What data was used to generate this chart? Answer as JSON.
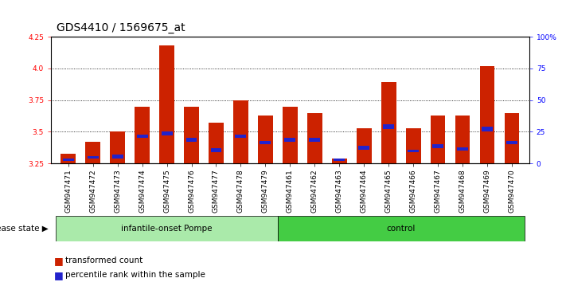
{
  "title": "GDS4410 / 1569675_at",
  "samples": [
    "GSM947471",
    "GSM947472",
    "GSM947473",
    "GSM947474",
    "GSM947475",
    "GSM947476",
    "GSM947477",
    "GSM947478",
    "GSM947479",
    "GSM947461",
    "GSM947462",
    "GSM947463",
    "GSM947464",
    "GSM947465",
    "GSM947466",
    "GSM947467",
    "GSM947468",
    "GSM947469",
    "GSM947470"
  ],
  "transformed_counts": [
    3.33,
    3.42,
    3.5,
    3.7,
    4.18,
    3.7,
    3.57,
    3.75,
    3.63,
    3.7,
    3.65,
    3.29,
    3.53,
    3.89,
    3.53,
    3.63,
    3.63,
    4.02,
    3.65
  ],
  "percentile_bottom": [
    3.27,
    3.29,
    3.29,
    3.45,
    3.47,
    3.42,
    3.34,
    3.45,
    3.4,
    3.42,
    3.42,
    3.27,
    3.36,
    3.52,
    3.34,
    3.37,
    3.35,
    3.5,
    3.4
  ],
  "percentile_top": [
    3.29,
    3.31,
    3.32,
    3.48,
    3.5,
    3.45,
    3.37,
    3.48,
    3.43,
    3.45,
    3.45,
    3.29,
    3.39,
    3.56,
    3.36,
    3.4,
    3.38,
    3.54,
    3.43
  ],
  "groups": [
    "infantile-onset Pompe",
    "infantile-onset Pompe",
    "infantile-onset Pompe",
    "infantile-onset Pompe",
    "infantile-onset Pompe",
    "infantile-onset Pompe",
    "infantile-onset Pompe",
    "infantile-onset Pompe",
    "infantile-onset Pompe",
    "control",
    "control",
    "control",
    "control",
    "control",
    "control",
    "control",
    "control",
    "control",
    "control"
  ],
  "pompe_color": "#AAEAAA",
  "control_color": "#44CC44",
  "bar_color": "#CC2200",
  "percentile_color": "#2222CC",
  "ylim": [
    3.25,
    4.25
  ],
  "yticks": [
    3.25,
    3.5,
    3.75,
    4.0,
    4.25
  ],
  "right_ylabels": [
    "0",
    "25",
    "50",
    "75",
    "100%"
  ],
  "bar_width": 0.6,
  "title_fontsize": 10,
  "tick_fontsize": 6.5,
  "label_fontsize": 7.5
}
